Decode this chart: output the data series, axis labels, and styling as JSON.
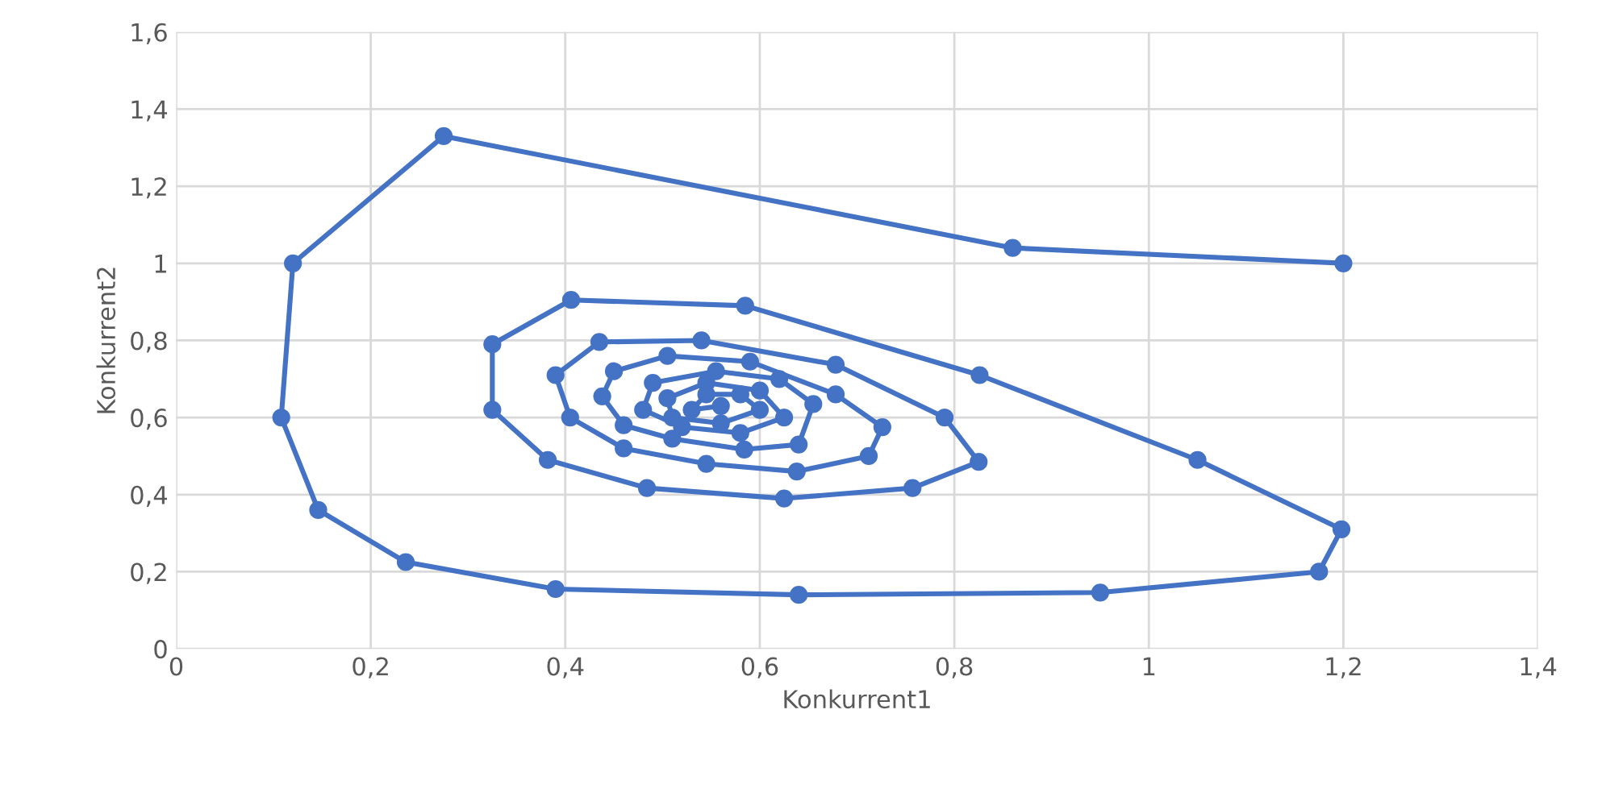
{
  "chart_data": {
    "type": "line",
    "xlabel": "Konkurrent1",
    "ylabel": "Konkurrent2",
    "xlim": [
      0,
      1.4
    ],
    "xticks": [
      {
        "value": 0,
        "label": "0"
      },
      {
        "value": 0.2,
        "label": "0,2"
      },
      {
        "value": 0.4,
        "label": "0,4"
      },
      {
        "value": 0.6,
        "label": "0,6"
      },
      {
        "value": 0.8,
        "label": "0,8"
      },
      {
        "value": 1,
        "label": "1"
      },
      {
        "value": 1.2,
        "label": "1,2"
      },
      {
        "value": 1.4,
        "label": "1,4"
      }
    ],
    "ylim": [
      0,
      1.6
    ],
    "yticks": [
      {
        "value": 0,
        "label": "0"
      },
      {
        "value": 0.2,
        "label": "0,2"
      },
      {
        "value": 0.4,
        "label": "0,4"
      },
      {
        "value": 0.6,
        "label": "0,6"
      },
      {
        "value": 0.8,
        "label": "0,8"
      },
      {
        "value": 1,
        "label": "1"
      },
      {
        "value": 1.2,
        "label": "1,2"
      },
      {
        "value": 1.4,
        "label": "1,4"
      },
      {
        "value": 1.6,
        "label": "1,6"
      }
    ],
    "grid": true,
    "marker": "circle",
    "line_style": "solid",
    "series": [
      {
        "color": "#4472c4",
        "x": [
          1.2,
          0.86,
          0.275,
          0.12,
          0.108,
          0.146,
          0.236,
          0.39,
          0.64,
          0.95,
          1.175,
          1.198,
          1.05,
          0.826,
          0.585,
          0.406,
          0.325,
          0.325,
          0.382,
          0.484,
          0.625,
          0.757,
          0.825,
          0.79,
          0.678,
          0.54,
          0.435,
          0.39,
          0.405,
          0.46,
          0.545,
          0.638,
          0.712,
          0.726,
          0.678,
          0.59,
          0.505,
          0.45,
          0.438,
          0.46,
          0.51,
          0.584,
          0.64,
          0.655,
          0.62,
          0.555,
          0.49,
          0.48,
          0.52,
          0.58,
          0.625,
          0.6,
          0.545,
          0.505,
          0.51,
          0.56,
          0.6,
          0.58,
          0.545,
          0.53,
          0.56
        ],
        "values": [
          1.0,
          1.04,
          1.33,
          1.0,
          0.6,
          0.36,
          0.225,
          0.155,
          0.14,
          0.146,
          0.2,
          0.31,
          0.49,
          0.71,
          0.89,
          0.905,
          0.79,
          0.62,
          0.49,
          0.417,
          0.39,
          0.417,
          0.485,
          0.6,
          0.737,
          0.8,
          0.796,
          0.71,
          0.6,
          0.52,
          0.48,
          0.46,
          0.5,
          0.575,
          0.66,
          0.745,
          0.76,
          0.72,
          0.655,
          0.58,
          0.545,
          0.517,
          0.53,
          0.635,
          0.7,
          0.72,
          0.69,
          0.62,
          0.575,
          0.56,
          0.6,
          0.67,
          0.69,
          0.65,
          0.6,
          0.585,
          0.62,
          0.66,
          0.66,
          0.62,
          0.63
        ]
      }
    ]
  }
}
